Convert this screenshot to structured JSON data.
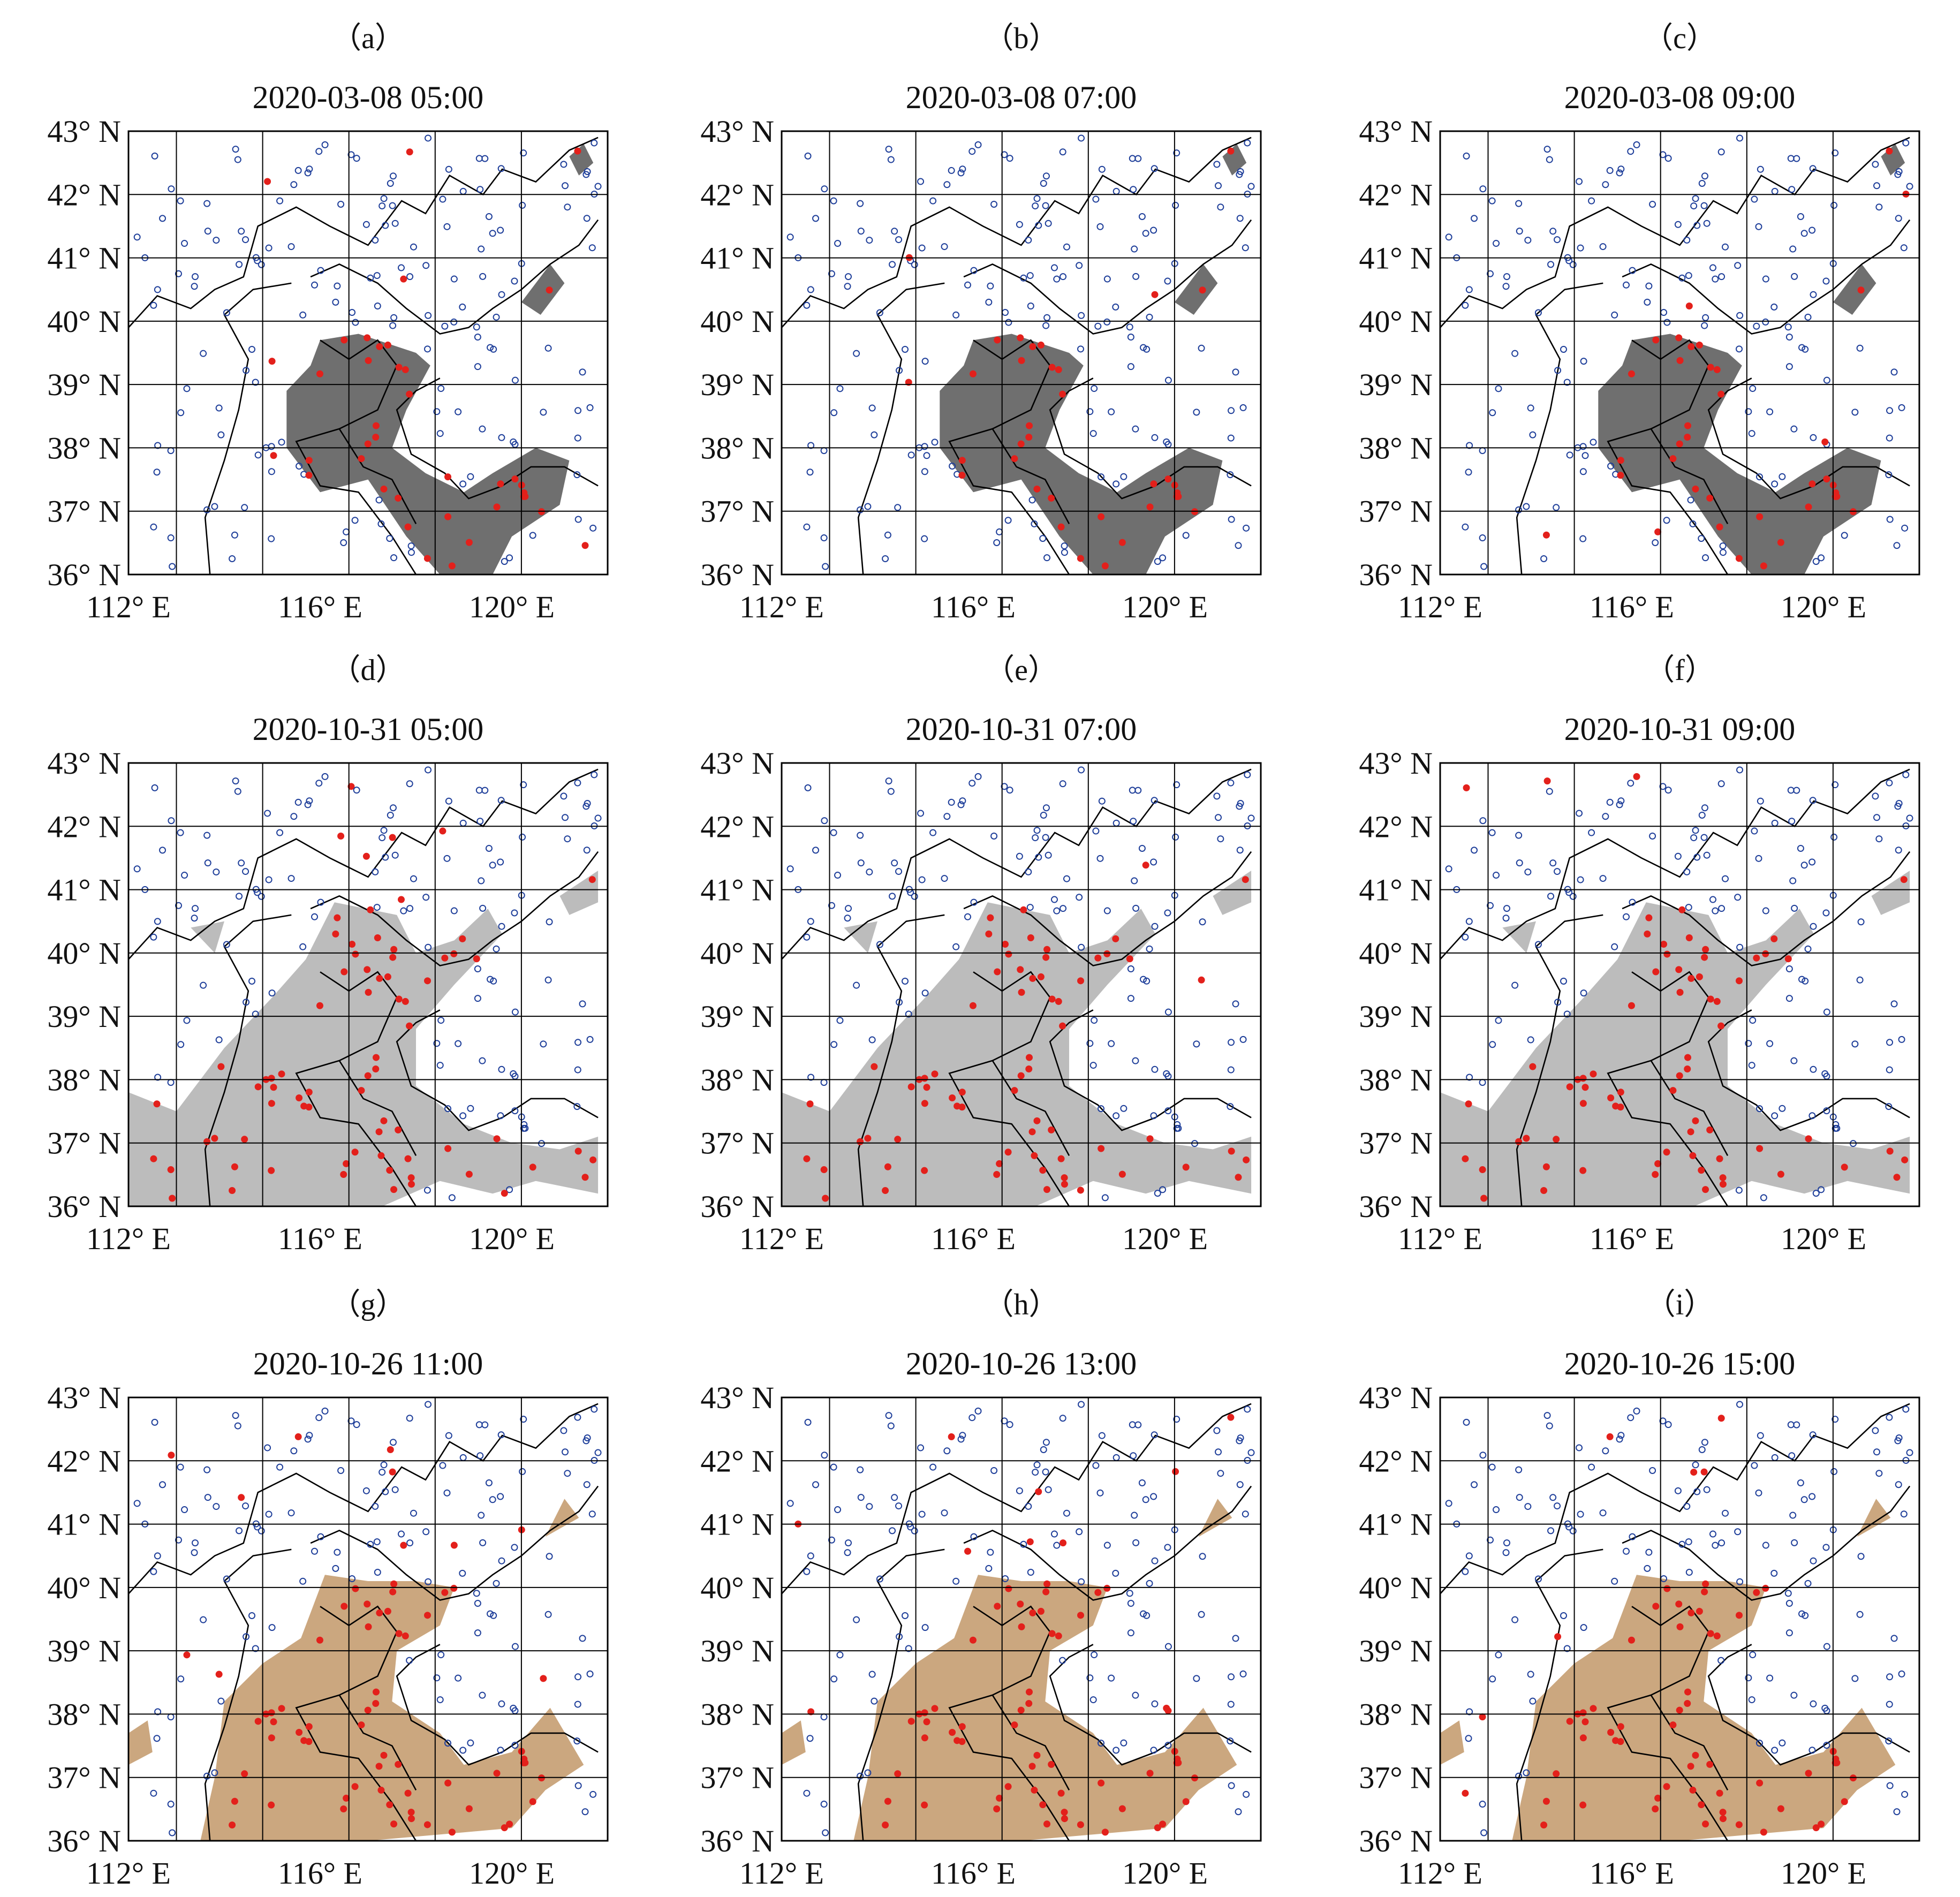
{
  "figure": {
    "lat_labels": [
      "36° N",
      "37° N",
      "38° N",
      "39° N",
      "40° N",
      "41° N",
      "42° N",
      "43° N"
    ],
    "lon_labels": [
      "112° E",
      "116° E",
      "120° E"
    ],
    "lon_range": [
      112,
      122
    ],
    "lat_range": [
      36,
      43
    ],
    "colors": {
      "haze_dark": "#6f6f6f",
      "haze_light": "#bcbcbc",
      "haze_tan": "#cba77f",
      "station_obs_fog": "#e3201b",
      "station_no_fog": "#1f3f9a",
      "grid": "#000000",
      "boundary": "#000000"
    },
    "panels": [
      {
        "letter": "（a）",
        "title": "2020-03-08  05:00",
        "fill": "dark"
      },
      {
        "letter": "（b）",
        "title": "2020-03-08  07:00",
        "fill": "dark"
      },
      {
        "letter": "（c）",
        "title": "2020-03-08  09:00",
        "fill": "dark"
      },
      {
        "letter": "（d）",
        "title": "2020-10-31  05:00",
        "fill": "light"
      },
      {
        "letter": "（e）",
        "title": "2020-10-31  07:00",
        "fill": "light"
      },
      {
        "letter": "（f）",
        "title": "2020-10-31  09:00",
        "fill": "light"
      },
      {
        "letter": "（g）",
        "title": "2020-10-26  11:00",
        "fill": "tan"
      },
      {
        "letter": "（h）",
        "title": "2020-10-26  13:00",
        "fill": "tan"
      },
      {
        "letter": "（i）",
        "title": "2020-10-26  15:00",
        "fill": "tan"
      }
    ]
  }
}
